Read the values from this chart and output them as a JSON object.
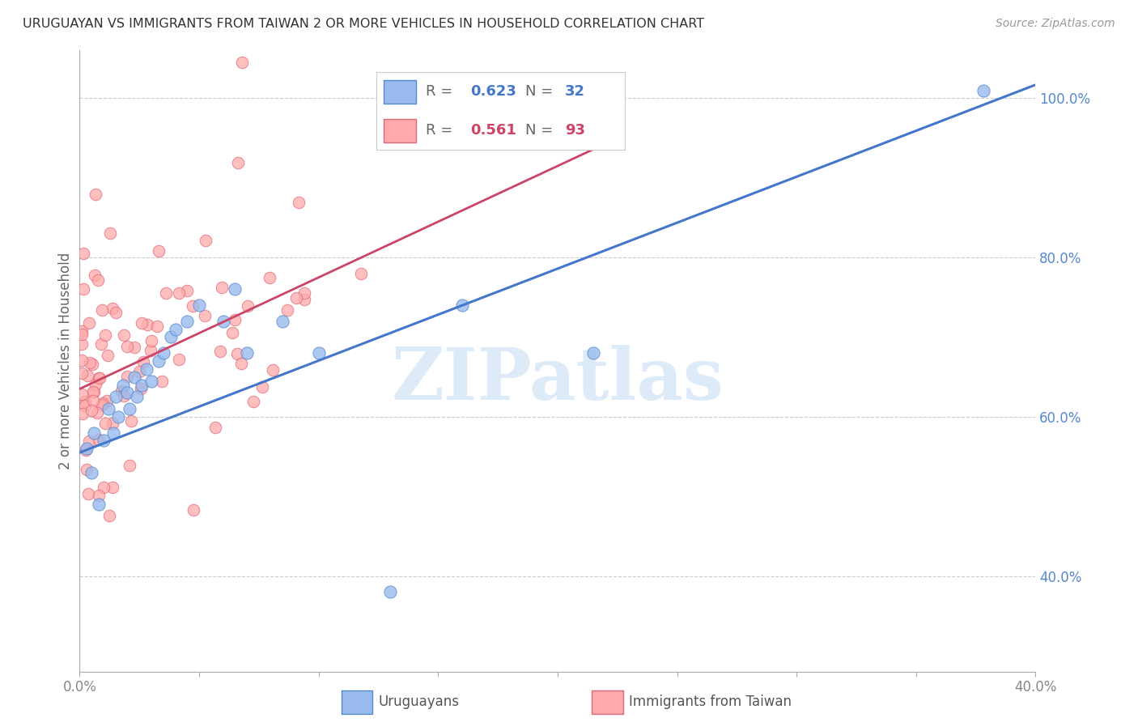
{
  "title": "URUGUAYAN VS IMMIGRANTS FROM TAIWAN 2 OR MORE VEHICLES IN HOUSEHOLD CORRELATION CHART",
  "source": "Source: ZipAtlas.com",
  "ylabel": "2 or more Vehicles in Household",
  "xmin": 0.0,
  "xmax": 0.4,
  "ymin": 0.28,
  "ymax": 1.06,
  "ytick_vals": [
    0.4,
    0.6,
    0.8,
    1.0
  ],
  "ytick_labels": [
    "40.0%",
    "60.0%",
    "80.0%",
    "100.0%"
  ],
  "xtick_vals": [
    0.0,
    0.05,
    0.1,
    0.15,
    0.2,
    0.25,
    0.3,
    0.35,
    0.4
  ],
  "xtick_labels": [
    "0.0%",
    "",
    "",
    "",
    "",
    "",
    "",
    "",
    "40.0%"
  ],
  "blue_R": 0.623,
  "blue_N": 32,
  "pink_R": 0.561,
  "pink_N": 93,
  "blue_scatter_color": "#99BBEE",
  "blue_edge_color": "#5588CC",
  "blue_line_color": "#4477CC",
  "pink_scatter_color": "#FFAAAA",
  "pink_edge_color": "#DD6677",
  "pink_line_color": "#CC4466",
  "watermark_text": "ZIPatlas",
  "watermark_color": "#AACCEE",
  "watermark_alpha": 0.4,
  "grid_color": "#CCCCCC",
  "axis_color": "#AAAAAA",
  "tick_label_color": "#888888",
  "right_tick_color": "#5588CC",
  "title_color": "#333333",
  "source_color": "#999999",
  "ylabel_color": "#666666",
  "legend_border_color": "#CCCCCC",
  "blue_line_intercept": 0.555,
  "blue_line_slope": 1.155,
  "pink_line_intercept": 0.635,
  "pink_line_slope": 1.4,
  "pink_line_xmax": 0.215
}
